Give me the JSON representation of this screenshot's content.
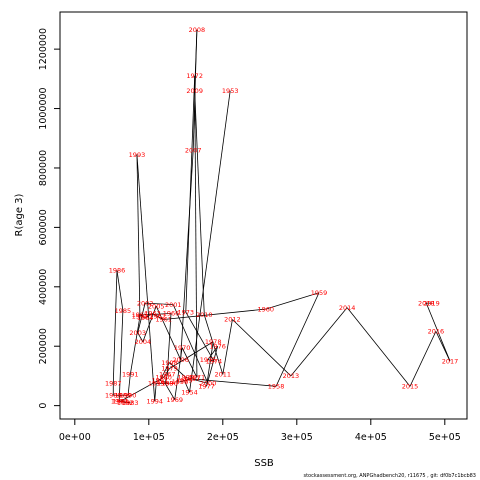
{
  "chart_data": {
    "type": "line",
    "xlabel": "SSB",
    "ylabel": "R(age 3)",
    "xlim": [
      -20000,
      530000
    ],
    "ylim": [
      -45000,
      1325000
    ],
    "x_ticks": [
      {
        "value": 0,
        "label": "0e+00"
      },
      {
        "value": 100000,
        "label": "1e+05"
      },
      {
        "value": 200000,
        "label": "2e+05"
      },
      {
        "value": 300000,
        "label": "3e+05"
      },
      {
        "value": 400000,
        "label": "4e+05"
      },
      {
        "value": 500000,
        "label": "5e+05"
      }
    ],
    "y_ticks": [
      {
        "value": 0,
        "label": "0"
      },
      {
        "value": 200000,
        "label": "200000"
      },
      {
        "value": 400000,
        "label": "400000"
      },
      {
        "value": 600000,
        "label": "600000"
      },
      {
        "value": 800000,
        "label": "800000"
      },
      {
        "value": 1000000,
        "label": "1000000"
      },
      {
        "value": 1200000,
        "label": "1200000"
      }
    ],
    "grid": false,
    "points": [
      {
        "year": "1953",
        "x": 210000,
        "y": 1060000
      },
      {
        "year": "1954",
        "x": 155000,
        "y": 45000
      },
      {
        "year": "1955",
        "x": 148000,
        "y": 85000
      },
      {
        "year": "1956",
        "x": 142000,
        "y": 80000
      },
      {
        "year": "1957",
        "x": 158000,
        "y": 90000
      },
      {
        "year": "1958",
        "x": 272000,
        "y": 65000
      },
      {
        "year": "1959",
        "x": 330000,
        "y": 380000
      },
      {
        "year": "1960",
        "x": 258000,
        "y": 325000
      },
      {
        "year": "1961",
        "x": 120000,
        "y": 290000
      },
      {
        "year": "1962",
        "x": 112000,
        "y": 300000
      },
      {
        "year": "1963",
        "x": 105000,
        "y": 310000
      },
      {
        "year": "1964",
        "x": 95000,
        "y": 295000
      },
      {
        "year": "1965",
        "x": 88000,
        "y": 305000
      },
      {
        "year": "1966",
        "x": 130000,
        "y": 310000
      },
      {
        "year": "1967",
        "x": 125000,
        "y": 105000
      },
      {
        "year": "1968",
        "x": 122000,
        "y": 75000
      },
      {
        "year": "1969",
        "x": 135000,
        "y": 20000
      },
      {
        "year": "1970",
        "x": 145000,
        "y": 195000
      },
      {
        "year": "1971",
        "x": 165000,
        "y": 95000
      },
      {
        "year": "1972",
        "x": 162000,
        "y": 1110000
      },
      {
        "year": "1973",
        "x": 150000,
        "y": 315000
      },
      {
        "year": "1974",
        "x": 188000,
        "y": 150000
      },
      {
        "year": "1975",
        "x": 180000,
        "y": 155000
      },
      {
        "year": "1976",
        "x": 193000,
        "y": 200000
      },
      {
        "year": "1977",
        "x": 178000,
        "y": 65000
      },
      {
        "year": "1978",
        "x": 187000,
        "y": 215000
      },
      {
        "year": "1979",
        "x": 128000,
        "y": 125000
      },
      {
        "year": "1980",
        "x": 120000,
        "y": 95000
      },
      {
        "year": "1981",
        "x": 62000,
        "y": 15000
      },
      {
        "year": "1982",
        "x": 68000,
        "y": 10000
      },
      {
        "year": "1983",
        "x": 75000,
        "y": 10000
      },
      {
        "year": "1984",
        "x": 60000,
        "y": 15000
      },
      {
        "year": "1985",
        "x": 65000,
        "y": 320000
      },
      {
        "year": "1986",
        "x": 57000,
        "y": 455000
      },
      {
        "year": "1987",
        "x": 52000,
        "y": 75000
      },
      {
        "year": "1988",
        "x": 52000,
        "y": 35000
      },
      {
        "year": "1989",
        "x": 65000,
        "y": 35000
      },
      {
        "year": "1990",
        "x": 72000,
        "y": 35000
      },
      {
        "year": "1991",
        "x": 75000,
        "y": 105000
      },
      {
        "year": "1992",
        "x": 88000,
        "y": 300000
      },
      {
        "year": "1993",
        "x": 84000,
        "y": 845000
      },
      {
        "year": "1994",
        "x": 108000,
        "y": 15000
      },
      {
        "year": "1995",
        "x": 110000,
        "y": 75000
      },
      {
        "year": "1996",
        "x": 128000,
        "y": 75000
      },
      {
        "year": "1997",
        "x": 115000,
        "y": 85000
      },
      {
        "year": "1998",
        "x": 128000,
        "y": 145000
      },
      {
        "year": "1999",
        "x": 150000,
        "y": 95000
      },
      {
        "year": "2000",
        "x": 180000,
        "y": 75000
      },
      {
        "year": "2001",
        "x": 133000,
        "y": 340000
      },
      {
        "year": "2002",
        "x": 95000,
        "y": 345000
      },
      {
        "year": "2003",
        "x": 85000,
        "y": 245000
      },
      {
        "year": "2004",
        "x": 92000,
        "y": 215000
      },
      {
        "year": "2005",
        "x": 110000,
        "y": 335000
      },
      {
        "year": "2006",
        "x": 143000,
        "y": 155000
      },
      {
        "year": "2007",
        "x": 160000,
        "y": 860000
      },
      {
        "year": "2008",
        "x": 165000,
        "y": 1265000
      },
      {
        "year": "2009",
        "x": 162000,
        "y": 1060000
      },
      {
        "year": "2010",
        "x": 175000,
        "y": 305000
      },
      {
        "year": "2011",
        "x": 200000,
        "y": 105000
      },
      {
        "year": "2012",
        "x": 213000,
        "y": 290000
      },
      {
        "year": "2013",
        "x": 292000,
        "y": 100000
      },
      {
        "year": "2014",
        "x": 368000,
        "y": 330000
      },
      {
        "year": "2015",
        "x": 453000,
        "y": 65000
      },
      {
        "year": "2016",
        "x": 488000,
        "y": 250000
      },
      {
        "year": "2017",
        "x": 507000,
        "y": 150000
      },
      {
        "year": "2018",
        "x": 475000,
        "y": 345000
      },
      {
        "year": "2019",
        "x": 482000,
        "y": 345000
      }
    ]
  },
  "footer": "stockassessment.org, ANPGhadbench20, r11675 , git: df0b7c1bcb83"
}
